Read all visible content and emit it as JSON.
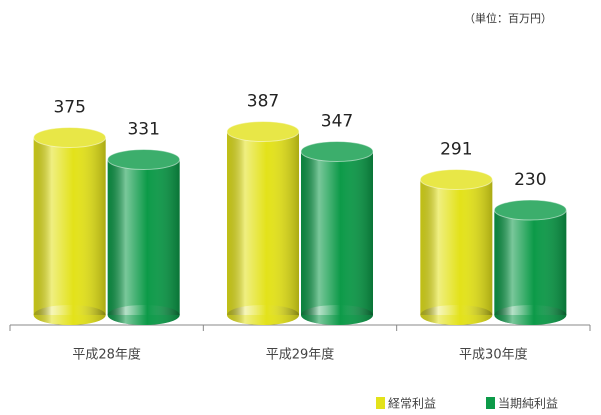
{
  "chart_data": {
    "type": "bar",
    "subtitle": "（単位：百万円）",
    "categories": [
      "平成28年度",
      "平成29年度",
      "平成30年度"
    ],
    "series": [
      {
        "name": "経常利益",
        "color": "#e3e21a",
        "values": [
          375,
          387,
          291
        ]
      },
      {
        "name": "当期純利益",
        "color": "#0c9a48",
        "values": [
          331,
          347,
          230
        ]
      }
    ]
  }
}
